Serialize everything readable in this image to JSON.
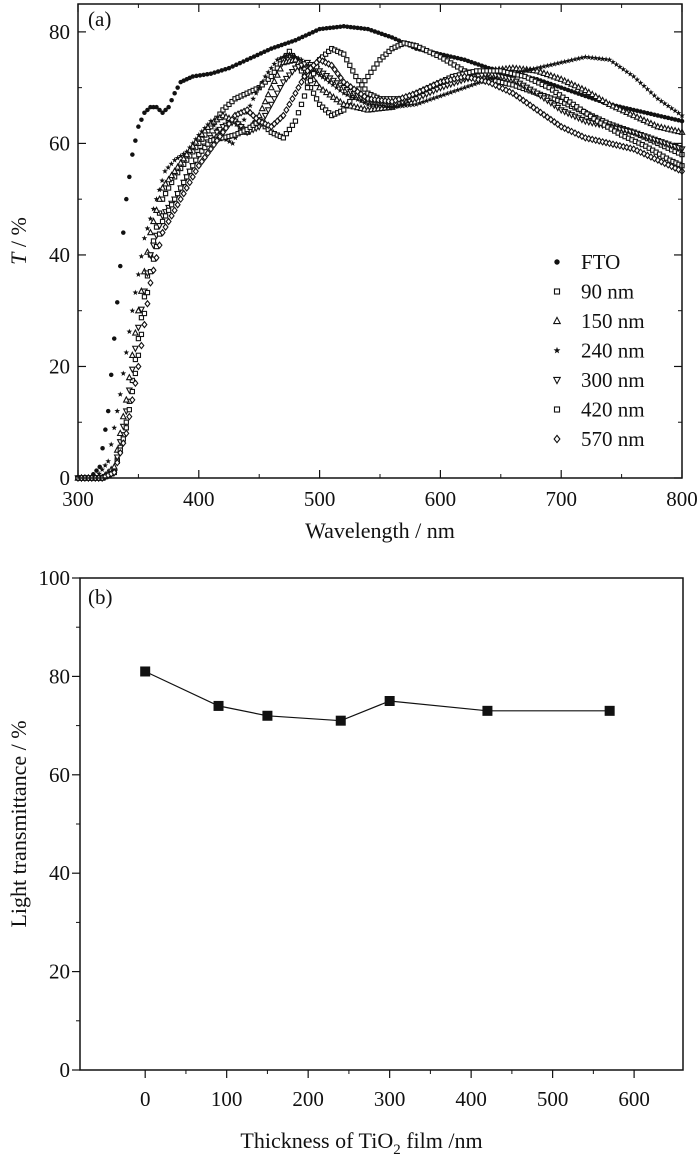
{
  "chart_data": [
    {
      "type": "scatter",
      "panel_label": "(a)",
      "xlabel": "Wavelength / nm",
      "ylabel_italic": "T",
      "ylabel_rest": " / %",
      "xlim": [
        300,
        800
      ],
      "ylim": [
        0,
        85
      ],
      "xticks": [
        300,
        400,
        500,
        600,
        700,
        800
      ],
      "yticks": [
        0,
        20,
        40,
        60,
        80
      ],
      "legend_position": "lower-right",
      "series": [
        {
          "name": "FTO",
          "marker": "filled-circle",
          "points": [
            [
              300,
              0
            ],
            [
              310,
              0
            ],
            [
              318,
              2
            ],
            [
              325,
              12
            ],
            [
              330,
              25
            ],
            [
              335,
              38
            ],
            [
              340,
              50
            ],
            [
              345,
              58
            ],
            [
              350,
              63
            ],
            [
              355,
              65.5
            ],
            [
              360,
              66.5
            ],
            [
              365,
              66.5
            ],
            [
              370,
              65.5
            ],
            [
              375,
              66.5
            ],
            [
              380,
              69
            ],
            [
              385,
              71
            ],
            [
              395,
              72
            ],
            [
              410,
              72.5
            ],
            [
              425,
              73.5
            ],
            [
              440,
              75
            ],
            [
              460,
              77
            ],
            [
              480,
              78.5
            ],
            [
              500,
              80.5
            ],
            [
              520,
              81
            ],
            [
              540,
              80.5
            ],
            [
              560,
              79
            ],
            [
              580,
              77
            ],
            [
              600,
              76
            ],
            [
              620,
              75
            ],
            [
              640,
              73.5
            ],
            [
              660,
              72.5
            ],
            [
              680,
              71.5
            ],
            [
              700,
              70
            ],
            [
              720,
              68.5
            ],
            [
              740,
              67
            ],
            [
              760,
              66
            ],
            [
              780,
              65
            ],
            [
              800,
              64
            ]
          ]
        },
        {
          "name": "90 nm",
          "marker": "open-square",
          "points": [
            [
              300,
              0
            ],
            [
              320,
              0
            ],
            [
              330,
              1
            ],
            [
              340,
              10
            ],
            [
              350,
              25
            ],
            [
              360,
              40
            ],
            [
              370,
              50
            ],
            [
              380,
              54
            ],
            [
              390,
              57
            ],
            [
              400,
              60
            ],
            [
              410,
              63
            ],
            [
              420,
              66
            ],
            [
              430,
              68
            ],
            [
              440,
              69
            ],
            [
              450,
              70
            ],
            [
              460,
              72
            ],
            [
              470,
              75
            ],
            [
              475,
              76.5
            ],
            [
              480,
              75
            ],
            [
              490,
              71
            ],
            [
              500,
              67
            ],
            [
              510,
              65
            ],
            [
              520,
              66
            ],
            [
              530,
              69
            ],
            [
              540,
              72
            ],
            [
              550,
              75
            ],
            [
              560,
              77
            ],
            [
              570,
              78
            ],
            [
              580,
              77.5
            ],
            [
              600,
              75.5
            ],
            [
              620,
              73
            ],
            [
              640,
              71.5
            ],
            [
              660,
              70.5
            ],
            [
              680,
              69
            ],
            [
              700,
              67.5
            ],
            [
              720,
              65.5
            ],
            [
              740,
              63.5
            ],
            [
              760,
              62
            ],
            [
              780,
              60
            ],
            [
              800,
              58
            ]
          ]
        },
        {
          "name": "150 nm",
          "marker": "open-triangle",
          "points": [
            [
              300,
              0
            ],
            [
              320,
              0
            ],
            [
              330,
              2
            ],
            [
              340,
              14
            ],
            [
              350,
              30
            ],
            [
              360,
              44
            ],
            [
              370,
              52
            ],
            [
              380,
              55
            ],
            [
              390,
              58
            ],
            [
              400,
              61
            ],
            [
              410,
              63.5
            ],
            [
              420,
              65
            ],
            [
              430,
              64
            ],
            [
              440,
              62
            ],
            [
              450,
              65
            ],
            [
              460,
              70
            ],
            [
              470,
              74.5
            ],
            [
              480,
              75
            ],
            [
              490,
              73
            ],
            [
              500,
              70
            ],
            [
              520,
              67
            ],
            [
              540,
              66
            ],
            [
              560,
              66.5
            ],
            [
              580,
              68.5
            ],
            [
              600,
              70.5
            ],
            [
              620,
              72
            ],
            [
              640,
              73
            ],
            [
              660,
              73.5
            ],
            [
              680,
              73
            ],
            [
              700,
              71.5
            ],
            [
              720,
              69.5
            ],
            [
              740,
              67
            ],
            [
              760,
              65
            ],
            [
              780,
              63
            ],
            [
              800,
              62
            ]
          ]
        },
        {
          "name": "240 nm",
          "marker": "star",
          "points": [
            [
              300,
              0
            ],
            [
              315,
              0
            ],
            [
              325,
              3
            ],
            [
              335,
              15
            ],
            [
              345,
              30
            ],
            [
              355,
              43
            ],
            [
              365,
              50
            ],
            [
              372,
              55
            ],
            [
              380,
              57
            ],
            [
              390,
              58.5
            ],
            [
              400,
              61.5
            ],
            [
              410,
              64
            ],
            [
              420,
              61
            ],
            [
              428,
              60
            ],
            [
              435,
              63
            ],
            [
              445,
              68
            ],
            [
              455,
              72
            ],
            [
              465,
              75
            ],
            [
              475,
              76
            ],
            [
              485,
              75
            ],
            [
              495,
              73
            ],
            [
              505,
              71.5
            ],
            [
              520,
              69
            ],
            [
              540,
              67
            ],
            [
              560,
              66.5
            ],
            [
              580,
              67
            ],
            [
              600,
              68.5
            ],
            [
              620,
              70
            ],
            [
              640,
              71.5
            ],
            [
              660,
              72.5
            ],
            [
              680,
              73.5
            ],
            [
              700,
              74.5
            ],
            [
              720,
              75.5
            ],
            [
              740,
              75
            ],
            [
              760,
              72
            ],
            [
              780,
              68
            ],
            [
              800,
              65
            ]
          ]
        },
        {
          "name": "300 nm",
          "marker": "open-triangle-down",
          "points": [
            [
              300,
              0
            ],
            [
              320,
              0
            ],
            [
              330,
              1
            ],
            [
              340,
              12
            ],
            [
              350,
              27
            ],
            [
              360,
              40
            ],
            [
              370,
              47
            ],
            [
              380,
              50
            ],
            [
              390,
              54
            ],
            [
              400,
              58
            ],
            [
              410,
              61
            ],
            [
              420,
              63
            ],
            [
              430,
              64
            ],
            [
              440,
              62
            ],
            [
              450,
              63
            ],
            [
              460,
              67
            ],
            [
              470,
              71
            ],
            [
              480,
              73.5
            ],
            [
              490,
              74.5
            ],
            [
              500,
              73
            ],
            [
              520,
              70
            ],
            [
              540,
              67.5
            ],
            [
              560,
              67
            ],
            [
              580,
              68
            ],
            [
              600,
              70
            ],
            [
              620,
              71.5
            ],
            [
              640,
              72.5
            ],
            [
              660,
              71.5
            ],
            [
              680,
              69
            ],
            [
              700,
              66
            ],
            [
              720,
              64
            ],
            [
              740,
              63
            ],
            [
              760,
              62
            ],
            [
              780,
              60.5
            ],
            [
              800,
              59
            ]
          ]
        },
        {
          "name": "420 nm",
          "marker": "open-square",
          "points": [
            [
              300,
              0
            ],
            [
              320,
              0
            ],
            [
              330,
              1
            ],
            [
              340,
              9
            ],
            [
              350,
              22
            ],
            [
              360,
              37
            ],
            [
              370,
              46
            ],
            [
              380,
              50
            ],
            [
              390,
              54
            ],
            [
              400,
              58
            ],
            [
              410,
              60.5
            ],
            [
              420,
              61
            ],
            [
              430,
              61.5
            ],
            [
              440,
              62.5
            ],
            [
              450,
              64
            ],
            [
              460,
              62
            ],
            [
              470,
              61
            ],
            [
              480,
              64
            ],
            [
              490,
              70
            ],
            [
              500,
              75
            ],
            [
              510,
              77
            ],
            [
              520,
              76
            ],
            [
              530,
              72
            ],
            [
              540,
              69
            ],
            [
              550,
              68
            ],
            [
              570,
              68
            ],
            [
              590,
              70
            ],
            [
              610,
              72
            ],
            [
              630,
              73
            ],
            [
              650,
              73
            ],
            [
              670,
              72
            ],
            [
              690,
              70
            ],
            [
              710,
              67
            ],
            [
              730,
              64
            ],
            [
              750,
              61.5
            ],
            [
              770,
              59.5
            ],
            [
              790,
              57
            ],
            [
              800,
              56
            ]
          ]
        },
        {
          "name": "570 nm",
          "marker": "open-diamond",
          "points": [
            [
              300,
              0
            ],
            [
              320,
              0
            ],
            [
              330,
              1
            ],
            [
              340,
              8
            ],
            [
              350,
              20
            ],
            [
              360,
              35
            ],
            [
              370,
              44
            ],
            [
              380,
              48
            ],
            [
              390,
              52
            ],
            [
              400,
              56
            ],
            [
              410,
              59
            ],
            [
              420,
              62
            ],
            [
              430,
              65
            ],
            [
              440,
              66
            ],
            [
              450,
              64
            ],
            [
              460,
              63
            ],
            [
              470,
              65
            ],
            [
              480,
              69
            ],
            [
              490,
              73
            ],
            [
              500,
              75
            ],
            [
              510,
              74
            ],
            [
              520,
              71
            ],
            [
              540,
              68
            ],
            [
              560,
              67.5
            ],
            [
              580,
              69
            ],
            [
              600,
              71
            ],
            [
              620,
              72
            ],
            [
              640,
              71
            ],
            [
              660,
              69
            ],
            [
              680,
              66
            ],
            [
              700,
              63
            ],
            [
              720,
              61
            ],
            [
              740,
              60
            ],
            [
              760,
              59
            ],
            [
              780,
              57
            ],
            [
              800,
              55
            ]
          ]
        }
      ]
    },
    {
      "type": "line",
      "panel_label": "(b)",
      "xlabel_main": "Thickness of TiO",
      "xlabel_sub": "2",
      "xlabel_tail": " film /nm",
      "ylabel": "Light transmittance / %",
      "xlim": [
        -80,
        660
      ],
      "ylim": [
        0,
        100
      ],
      "xticks": [
        0,
        100,
        200,
        300,
        400,
        500,
        600
      ],
      "yticks": [
        0,
        20,
        40,
        60,
        80,
        100
      ],
      "marker": "filled-square",
      "x": [
        0,
        90,
        150,
        240,
        300,
        420,
        570
      ],
      "y": [
        81,
        74,
        72,
        71,
        75,
        73,
        73
      ]
    }
  ],
  "colors": {
    "ink": "#111111",
    "background": "#ffffff"
  }
}
